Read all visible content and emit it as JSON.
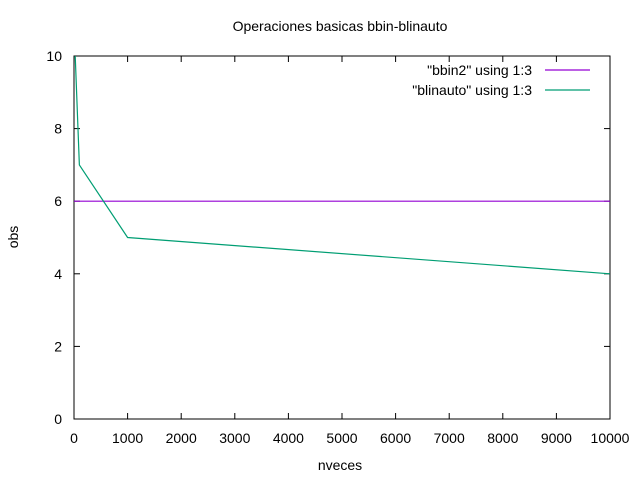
{
  "chart_data": {
    "type": "line",
    "title": "Operaciones basicas bbin-blinauto",
    "xlabel": "nveces",
    "ylabel": "obs",
    "xlim": [
      0,
      10000
    ],
    "ylim": [
      0,
      10
    ],
    "x_ticks": [
      0,
      1000,
      2000,
      3000,
      4000,
      5000,
      6000,
      7000,
      8000,
      9000,
      10000
    ],
    "y_ticks": [
      0,
      2,
      4,
      6,
      8,
      10
    ],
    "grid": false,
    "legend_position": "top-right",
    "series": [
      {
        "name": "\"bbin2\" using 1:3",
        "color": "#9400d3",
        "x": [
          0,
          10000
        ],
        "y": [
          6,
          6
        ]
      },
      {
        "name": "\"blinauto\" using 1:3",
        "color": "#009e73",
        "x": [
          10,
          100,
          1000,
          10000
        ],
        "y": [
          10.5,
          7,
          5,
          4
        ]
      }
    ]
  }
}
